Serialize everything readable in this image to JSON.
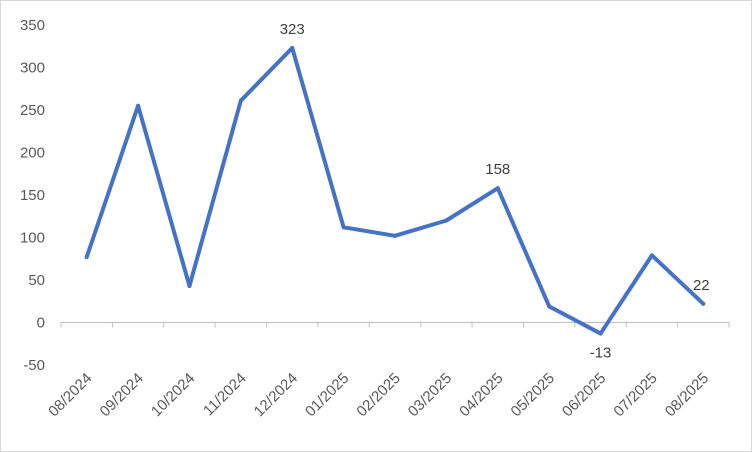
{
  "chart_data": {
    "type": "line",
    "categories": [
      "08/2024",
      "09/2024",
      "10/2024",
      "11/2024",
      "12/2024",
      "01/2025",
      "02/2025",
      "03/2025",
      "04/2025",
      "05/2025",
      "06/2025",
      "07/2025",
      "08/2025"
    ],
    "series": [
      {
        "values": [
          77,
          255,
          43,
          261,
          323,
          112,
          102,
          120,
          158,
          19,
          -13,
          79,
          22
        ],
        "color": "#4472C4"
      }
    ],
    "data_labels": [
      {
        "index": 4,
        "text": "323"
      },
      {
        "index": 8,
        "text": "158"
      },
      {
        "index": 10,
        "text": "-13"
      },
      {
        "index": 12,
        "text": "22"
      }
    ],
    "y_ticks": [
      "-50",
      "0",
      "50",
      "100",
      "150",
      "200",
      "250",
      "300",
      "350"
    ],
    "ylim": [
      -50,
      350
    ],
    "xlabel": "",
    "ylabel": "",
    "title": "",
    "grid": false,
    "legend": "none"
  }
}
